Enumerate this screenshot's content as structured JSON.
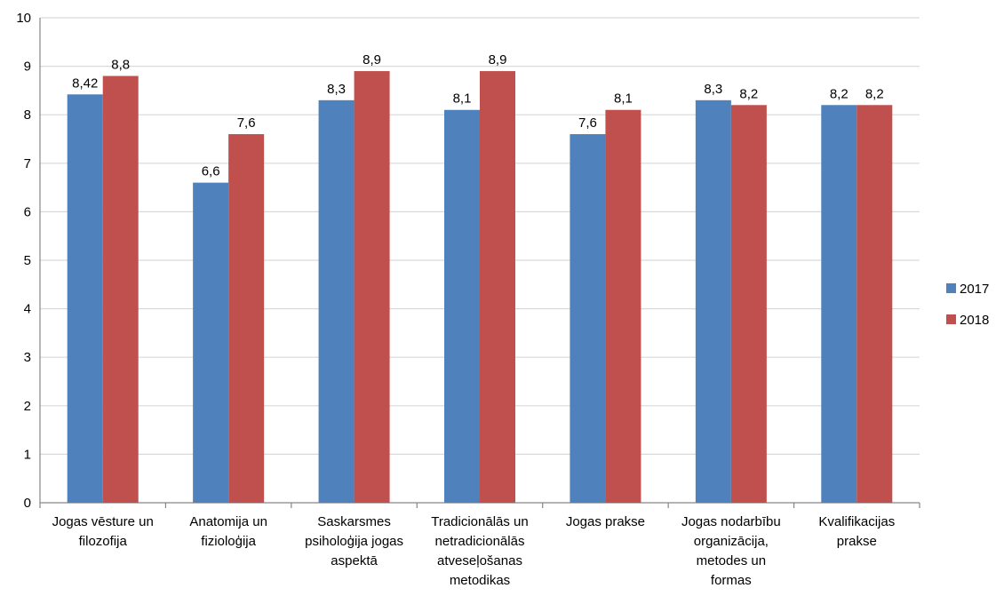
{
  "chart_data": {
    "type": "bar",
    "title": "",
    "xlabel": "",
    "ylabel": "",
    "ylim": [
      0,
      10
    ],
    "y_ticks": [
      "0",
      "1",
      "2",
      "3",
      "4",
      "5",
      "6",
      "7",
      "8",
      "9",
      "10"
    ],
    "grid": "horizontal",
    "legend_position": "right",
    "categories": [
      [
        "Jogas vēsture un",
        "filozofija"
      ],
      [
        "Anatomija un",
        "fizioloģija"
      ],
      [
        "Saskarsmes",
        "psiholoģija jogas",
        "aspektā"
      ],
      [
        "Tradicionālās un",
        "netradicionālās",
        "atveseļošanas",
        "metodikas"
      ],
      [
        "Jogas prakse"
      ],
      [
        "Jogas nodarbību",
        "organizācija,",
        "metodes un",
        "formas"
      ],
      [
        "Kvalifikacijas",
        "prakse"
      ]
    ],
    "series": [
      {
        "name": "2017",
        "color": "#4f81bd",
        "values": [
          8.42,
          6.6,
          8.3,
          8.1,
          7.6,
          8.3,
          8.2
        ],
        "labels": [
          "8,42",
          "6,6",
          "8,3",
          "8,1",
          "7,6",
          "8,3",
          "8,2"
        ]
      },
      {
        "name": "2018",
        "color": "#c0504d",
        "values": [
          8.8,
          7.6,
          8.9,
          8.9,
          8.1,
          8.2,
          8.2
        ],
        "labels": [
          "8,8",
          "7,6",
          "8,9",
          "8,9",
          "8,1",
          "8,2",
          "8,2"
        ]
      }
    ]
  }
}
